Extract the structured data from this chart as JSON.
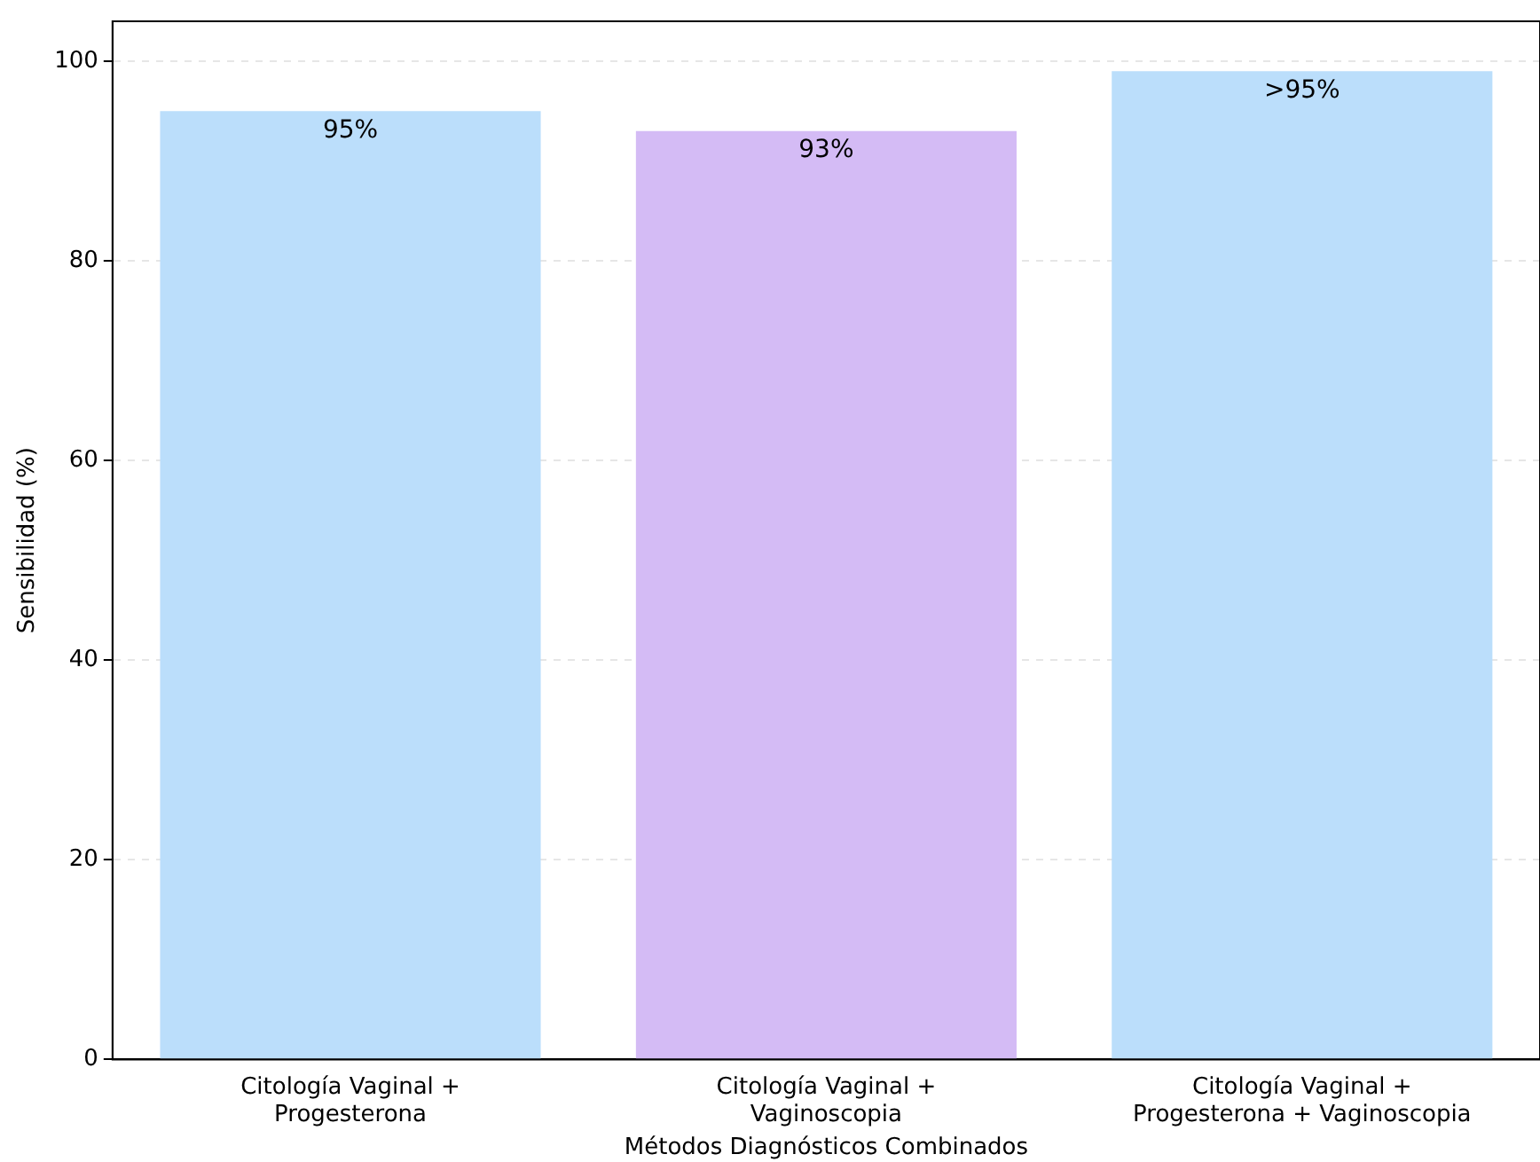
{
  "chart_data": {
    "type": "bar",
    "xlabel": "Métodos Diagnósticos Combinados",
    "ylabel": "Sensibilidad (%)",
    "categories": [
      "Citología Vaginal +\nProgesterona",
      "Citología Vaginal +\nVaginoscopia",
      "Citología Vaginal +\nProgesterona + Vaginoscopia"
    ],
    "values": [
      95,
      93,
      99
    ],
    "colors": [
      "#bbdefb",
      "#d4bbf5",
      "#bbdefb"
    ],
    "value_labels": [
      "95%",
      "93%",
      ">95%"
    ],
    "ylim": [
      0,
      104
    ],
    "yticks": [
      0,
      20,
      40,
      60,
      80,
      100
    ],
    "grid": "y",
    "legend": false
  }
}
